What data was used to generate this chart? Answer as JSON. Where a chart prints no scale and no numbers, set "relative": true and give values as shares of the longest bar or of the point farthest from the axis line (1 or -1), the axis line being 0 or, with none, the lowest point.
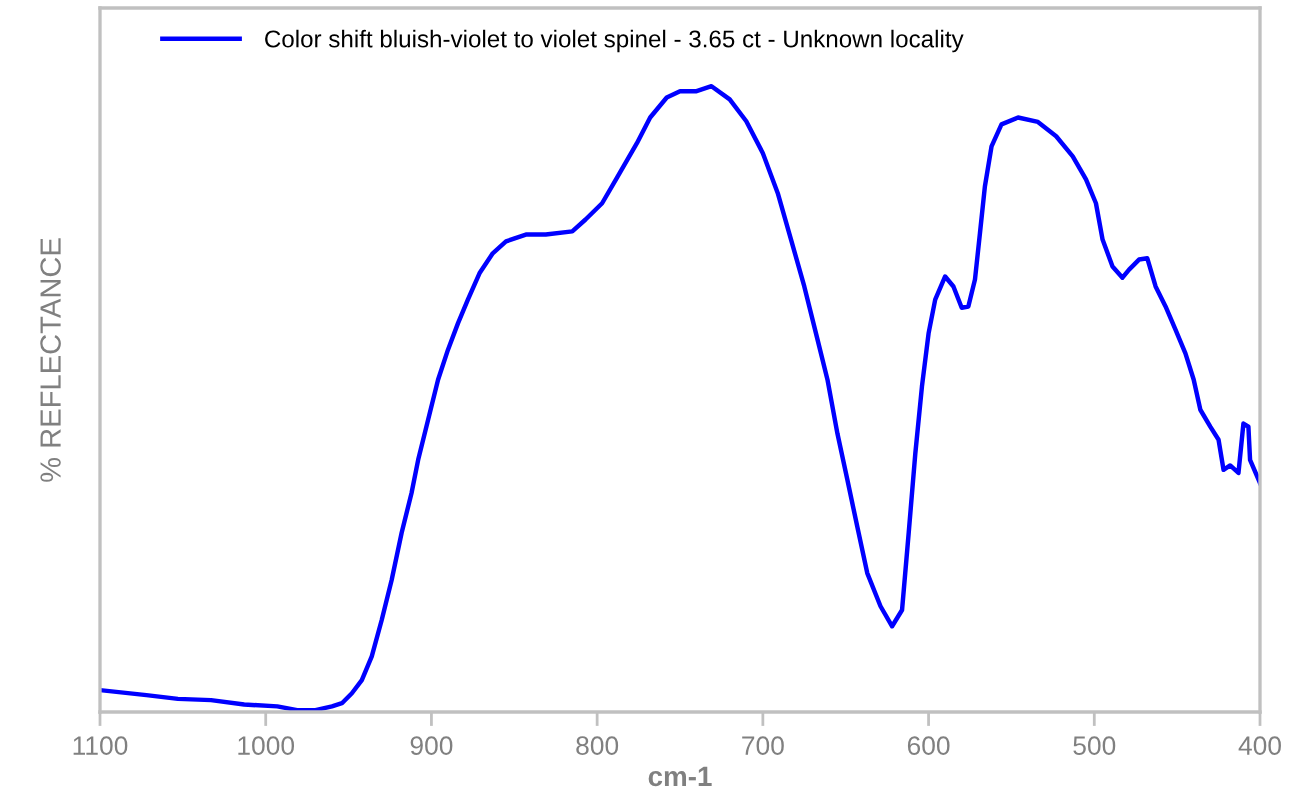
{
  "chart_data": {
    "type": "line",
    "relative": true,
    "xlabel": "cm-1",
    "ylabel": "% REFLECTANCE",
    "xlim": [
      1100,
      400
    ],
    "xticks": [
      1100,
      1000,
      900,
      800,
      700,
      600,
      500,
      400
    ],
    "grid": false,
    "legend": "top left",
    "tick_labels": "x",
    "series": [
      {
        "name": "Color shift bluish-violet to violet spinel - 3.65 ct - Unknown locality",
        "color": "#0000ff",
        "x": [
          1100,
          1072,
          1053,
          1033,
          1013,
          993,
          981,
          970,
          960,
          954,
          948,
          942,
          936,
          930,
          924,
          918,
          912,
          908,
          902,
          896,
          890,
          884,
          878,
          871,
          863,
          855,
          843,
          831,
          815,
          807,
          797,
          788,
          776,
          768,
          758,
          750,
          740,
          731,
          720,
          710,
          700,
          691,
          683,
          675,
          667,
          661,
          655,
          649,
          643,
          637,
          629,
          622,
          616,
          612,
          608,
          604,
          600,
          596,
          590,
          585,
          580,
          576,
          572,
          569,
          566,
          562,
          556,
          546,
          534,
          523,
          513,
          505,
          499,
          495,
          489,
          483,
          479,
          473,
          468,
          463,
          457,
          451,
          445,
          440,
          436,
          430,
          425,
          422,
          418,
          413,
          410,
          407,
          406,
          400
        ],
        "values": [
          0.035,
          0.027,
          0.021,
          0.019,
          0.012,
          0.009,
          0.003,
          0.003,
          0.009,
          0.014,
          0.03,
          0.051,
          0.089,
          0.147,
          0.211,
          0.286,
          0.35,
          0.403,
          0.467,
          0.531,
          0.579,
          0.621,
          0.659,
          0.701,
          0.733,
          0.752,
          0.763,
          0.763,
          0.768,
          0.787,
          0.813,
          0.854,
          0.909,
          0.95,
          0.982,
          0.992,
          0.992,
          1.0,
          0.979,
          0.944,
          0.893,
          0.829,
          0.755,
          0.68,
          0.595,
          0.531,
          0.445,
          0.371,
          0.296,
          0.222,
          0.169,
          0.137,
          0.163,
          0.286,
          0.413,
          0.52,
          0.605,
          0.659,
          0.696,
          0.68,
          0.646,
          0.648,
          0.691,
          0.765,
          0.84,
          0.904,
          0.939,
          0.95,
          0.943,
          0.92,
          0.888,
          0.851,
          0.813,
          0.755,
          0.712,
          0.694,
          0.707,
          0.723,
          0.725,
          0.68,
          0.648,
          0.611,
          0.573,
          0.531,
          0.483,
          0.456,
          0.435,
          0.387,
          0.394,
          0.382,
          0.461,
          0.456,
          0.403,
          0.366
        ]
      }
    ]
  }
}
